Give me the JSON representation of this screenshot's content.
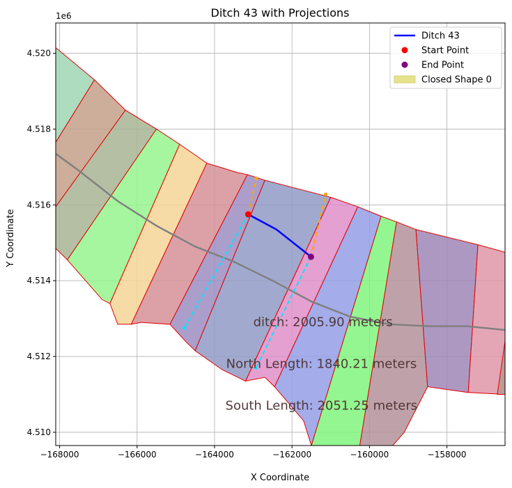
{
  "chart_data": {
    "type": "line",
    "title": "Ditch 43 with Projections",
    "xlabel": "X Coordinate",
    "ylabel": "Y Coordinate",
    "y_offset_label": "1e6",
    "xlim": [
      -168100,
      -156500
    ],
    "ylim": [
      4509650,
      4520800
    ],
    "grid": true,
    "legend_position": "top-right",
    "x_ticks": [
      {
        "value": -168000,
        "label": "−168000"
      },
      {
        "value": -166000,
        "label": "−166000"
      },
      {
        "value": -164000,
        "label": "−164000"
      },
      {
        "value": -162000,
        "label": "−162000"
      },
      {
        "value": -160000,
        "label": "−160000"
      },
      {
        "value": -158000,
        "label": "−158000"
      }
    ],
    "y_ticks": [
      {
        "value": 4510000,
        "label": "4.510"
      },
      {
        "value": 4512000,
        "label": "4.512"
      },
      {
        "value": 4514000,
        "label": "4.514"
      },
      {
        "value": 4516000,
        "label": "4.516"
      },
      {
        "value": 4518000,
        "label": "4.518"
      },
      {
        "value": 4520000,
        "label": "4.520"
      }
    ],
    "legend": [
      {
        "label": "Ditch 43",
        "kind": "line",
        "color": "#0000ff"
      },
      {
        "label": "Start Point",
        "kind": "marker",
        "color": "#ff0000"
      },
      {
        "label": "End Point",
        "kind": "marker",
        "color": "#800080"
      },
      {
        "label": "Closed Shape 0",
        "kind": "patch",
        "color": "#e5e38c"
      }
    ],
    "polygons": [
      {
        "fill": "#9fd6b4",
        "points": [
          [
            -168100,
            4520150
          ],
          [
            -167100,
            4519300
          ],
          [
            -168100,
            4517650
          ]
        ]
      },
      {
        "fill": "#c4a08a",
        "points": [
          [
            -168100,
            4517650
          ],
          [
            -167100,
            4519300
          ],
          [
            -166300,
            4518500
          ],
          [
            -168100,
            4515950
          ]
        ]
      },
      {
        "fill": "#a8b494",
        "points": [
          [
            -168100,
            4515950
          ],
          [
            -166300,
            4518500
          ],
          [
            -165500,
            4518000
          ],
          [
            -167800,
            4514550
          ],
          [
            -168100,
            4514850
          ]
        ]
      },
      {
        "fill": "#96f58e",
        "points": [
          [
            -167800,
            4514550
          ],
          [
            -165500,
            4518000
          ],
          [
            -164900,
            4517600
          ],
          [
            -166700,
            4513400
          ],
          [
            -166900,
            4513500
          ]
        ]
      },
      {
        "fill": "#f5d596",
        "points": [
          [
            -166700,
            4513400
          ],
          [
            -164900,
            4517600
          ],
          [
            -164200,
            4517100
          ],
          [
            -166150,
            4512850
          ],
          [
            -166500,
            4512850
          ]
        ]
      },
      {
        "fill": "#d69097",
        "points": [
          [
            -166150,
            4512850
          ],
          [
            -164200,
            4517100
          ],
          [
            -163400,
            4516850
          ],
          [
            -163150,
            4516800
          ],
          [
            -165150,
            4512850
          ],
          [
            -165900,
            4512900
          ]
        ]
      },
      {
        "fill": "#9c8dc2",
        "points": [
          [
            -165150,
            4512850
          ],
          [
            -163150,
            4516800
          ],
          [
            -162700,
            4516650
          ],
          [
            -164500,
            4512150
          ],
          [
            -164750,
            4512400
          ]
        ]
      },
      {
        "fill": "#919bc5",
        "points": [
          [
            -164500,
            4512150
          ],
          [
            -162700,
            4516650
          ],
          [
            -161000,
            4516200
          ],
          [
            -163200,
            4511350
          ],
          [
            -163800,
            4511650
          ]
        ]
      },
      {
        "fill": "#de8fc9",
        "points": [
          [
            -163200,
            4511350
          ],
          [
            -161000,
            4516200
          ],
          [
            -160300,
            4515950
          ],
          [
            -162450,
            4511200
          ],
          [
            -162700,
            4511450
          ]
        ]
      },
      {
        "fill": "#949de6",
        "points": [
          [
            -162450,
            4511200
          ],
          [
            -160300,
            4515950
          ],
          [
            -159700,
            4515700
          ],
          [
            -161500,
            4509650
          ],
          [
            -161700,
            4510300
          ]
        ]
      },
      {
        "fill": "#80f47c",
        "points": [
          [
            -161500,
            4509650
          ],
          [
            -159700,
            4515700
          ],
          [
            -159300,
            4515550
          ],
          [
            -160250,
            4509650
          ]
        ]
      },
      {
        "fill": "#b4929a",
        "points": [
          [
            -160250,
            4509650
          ],
          [
            -159300,
            4515550
          ],
          [
            -158800,
            4515350
          ],
          [
            -158500,
            4511200
          ],
          [
            -159100,
            4510000
          ],
          [
            -159400,
            4509650
          ]
        ]
      },
      {
        "fill": "#9f86b6",
        "points": [
          [
            -158500,
            4511200
          ],
          [
            -158800,
            4515350
          ],
          [
            -157200,
            4514950
          ],
          [
            -157450,
            4511050
          ]
        ]
      },
      {
        "fill": "#df96a8",
        "points": [
          [
            -157450,
            4511050
          ],
          [
            -157200,
            4514950
          ],
          [
            -156500,
            4514750
          ],
          [
            -156500,
            4511000
          ]
        ]
      },
      {
        "fill": "#b89890",
        "points": [
          [
            -156700,
            4511000
          ],
          [
            -156500,
            4512400
          ],
          [
            -156500,
            4511000
          ]
        ]
      }
    ],
    "centerline": {
      "color": "#808080",
      "points": [
        [
          -168100,
          4517350
        ],
        [
          -167500,
          4516900
        ],
        [
          -166500,
          4516100
        ],
        [
          -165500,
          4515450
        ],
        [
          -164500,
          4514900
        ],
        [
          -163500,
          4514500
        ],
        [
          -162500,
          4514000
        ],
        [
          -161500,
          4513450
        ],
        [
          -160500,
          4513050
        ],
        [
          -159500,
          4512850
        ],
        [
          -158500,
          4512800
        ],
        [
          -157500,
          4512800
        ],
        [
          -156500,
          4512700
        ]
      ]
    },
    "ditch": {
      "name": "Ditch 43",
      "color": "#0000ff",
      "points": [
        [
          -163130,
          4515750
        ],
        [
          -162400,
          4515350
        ],
        [
          -161510,
          4514630
        ]
      ]
    },
    "start_point": {
      "x": -163130,
      "y": 4515750,
      "color": "#ff0000"
    },
    "end_point": {
      "x": -161510,
      "y": 4514630,
      "color": "#800080"
    },
    "north_projection": {
      "color": "#ffa500",
      "points": [
        [
          -163130,
          4515750
        ],
        [
          -162920,
          4516700
        ]
      ]
    },
    "north_projection_2": {
      "color": "#ffa500",
      "points": [
        [
          -161510,
          4514630
        ],
        [
          -161130,
          4516280
        ]
      ]
    },
    "south_projection": {
      "color": "#00e5ff",
      "points": [
        [
          -163130,
          4515750
        ],
        [
          -164780,
          4512750
        ]
      ]
    },
    "south_projection_2": {
      "color": "#00e5ff",
      "points": [
        [
          -161510,
          4514630
        ],
        [
          -162930,
          4511700
        ]
      ]
    },
    "annotations": [
      {
        "text": "ditch: 2005.90 meters",
        "x": -163000,
        "y": 4512800
      },
      {
        "text": "North Length: 1840.21 meters",
        "x": -163700,
        "y": 4511700
      },
      {
        "text": "South Length: 2051.25 meters",
        "x": -163720,
        "y": 4510600
      }
    ]
  }
}
